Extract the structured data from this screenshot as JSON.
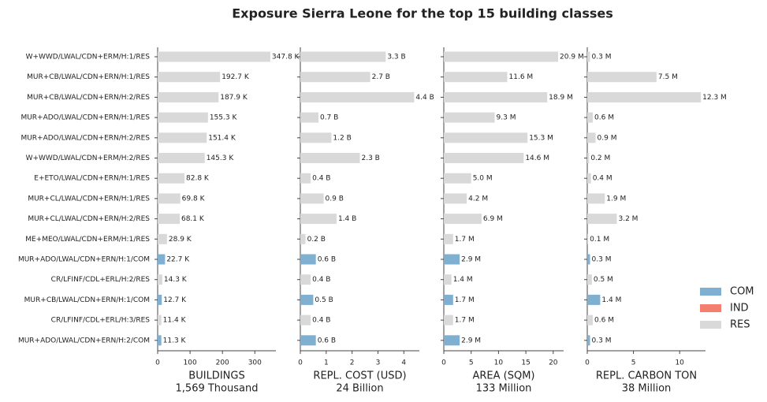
{
  "title": "Exposure Sierra Leone for the top 15 building classes",
  "categories": [
    "W+WWD/LWAL/CDN+ERM/H:1/RES",
    "MUR+CB/LWAL/CDN+ERN/H:1/RES",
    "MUR+CB/LWAL/CDN+ERN/H:2/RES",
    "MUR+ADO/LWAL/CDN+ERN/H:1/RES",
    "MUR+ADO/LWAL/CDN+ERN/H:2/RES",
    "W+WWD/LWAL/CDN+ERM/H:2/RES",
    "E+ETO/LWAL/CDN+ERN/H:1/RES",
    "MUR+CL/LWAL/CDN+ERN/H:1/RES",
    "MUR+CL/LWAL/CDN+ERN/H:2/RES",
    "ME+MEO/LWAL/CDN+ERM/H:1/RES",
    "MUR+ADO/LWAL/CDN+ERN/H:1/COM",
    "CR/LFINF/CDL+ERL/H:2/RES",
    "MUR+CB/LWAL/CDN+ERN/H:1/COM",
    "CR/LFINF/CDL+ERL/H:3/RES",
    "MUR+ADO/LWAL/CDN+ERN/H:2/COM"
  ],
  "legend": [
    {
      "name": "COM",
      "color": "#7fb0d2"
    },
    {
      "name": "IND",
      "color": "#f47f6e"
    },
    {
      "name": "RES",
      "color": "#d9d9d9"
    }
  ],
  "chart_data": [
    {
      "type": "barh",
      "xlabel": "BUILDINGS",
      "subtitle": "1,569 Thousand",
      "values": [
        347.8,
        192.7,
        187.9,
        155.3,
        151.4,
        145.3,
        82.8,
        69.8,
        68.1,
        28.9,
        22.7,
        14.3,
        12.7,
        11.4,
        11.3
      ],
      "value_labels": [
        "347.8 K",
        "192.7 K",
        "187.9 K",
        "155.3 K",
        "151.4 K",
        "145.3 K",
        "82.8 K",
        "69.8 K",
        "68.1 K",
        "28.9 K",
        "22.7 K",
        "14.3 K",
        "12.7 K",
        "11.4 K",
        "11.3 K"
      ],
      "xlim": [
        0,
        365
      ],
      "xticks": [
        0,
        100,
        200,
        300
      ]
    },
    {
      "type": "barh",
      "xlabel": "REPL. COST (USD)",
      "subtitle": "24 Billion",
      "values": [
        3.3,
        2.7,
        4.4,
        0.7,
        1.2,
        2.3,
        0.4,
        0.9,
        1.4,
        0.2,
        0.6,
        0.4,
        0.5,
        0.4,
        0.6
      ],
      "value_labels": [
        "3.3 B",
        "2.7 B",
        "4.4 B",
        "0.7 B",
        "1.2 B",
        "2.3 B",
        "0.4 B",
        "0.9 B",
        "1.4 B",
        "0.2 B",
        "0.6 B",
        "0.4 B",
        "0.5 B",
        "0.4 B",
        "0.6 B"
      ],
      "xlim": [
        0,
        4.6
      ],
      "xticks": [
        0,
        1,
        2,
        3,
        4
      ]
    },
    {
      "type": "barh",
      "xlabel": "AREA (SQM)",
      "subtitle": "133 Million",
      "values": [
        20.9,
        11.6,
        18.9,
        9.3,
        15.3,
        14.6,
        5.0,
        4.2,
        6.9,
        1.7,
        2.9,
        1.4,
        1.7,
        1.7,
        2.9
      ],
      "value_labels": [
        "20.9 M",
        "11.6 M",
        "18.9 M",
        "9.3 M",
        "15.3 M",
        "14.6 M",
        "5.0 M",
        "4.2 M",
        "6.9 M",
        "1.7 M",
        "2.9 M",
        "1.4 M",
        "1.7 M",
        "1.7 M",
        "2.9 M"
      ],
      "xlim": [
        0,
        21.9
      ],
      "xticks": [
        0,
        5,
        10,
        15,
        20
      ]
    },
    {
      "type": "barh",
      "xlabel": "REPL. CARBON TON",
      "subtitle": "38 Million",
      "values": [
        0.3,
        7.5,
        12.3,
        0.6,
        0.9,
        0.2,
        0.4,
        1.9,
        3.2,
        0.1,
        0.3,
        0.5,
        1.4,
        0.6,
        0.3
      ],
      "value_labels": [
        "0.3 M",
        "7.5 M",
        "12.3 M",
        "0.6 M",
        "0.9 M",
        "0.2 M",
        "0.4 M",
        "1.9 M",
        "3.2 M",
        "0.1 M",
        "0.3 M",
        "0.5 M",
        "1.4 M",
        "0.6 M",
        "0.3 M"
      ],
      "xlim": [
        0,
        12.8
      ],
      "xticks": [
        0,
        5,
        10
      ]
    }
  ]
}
